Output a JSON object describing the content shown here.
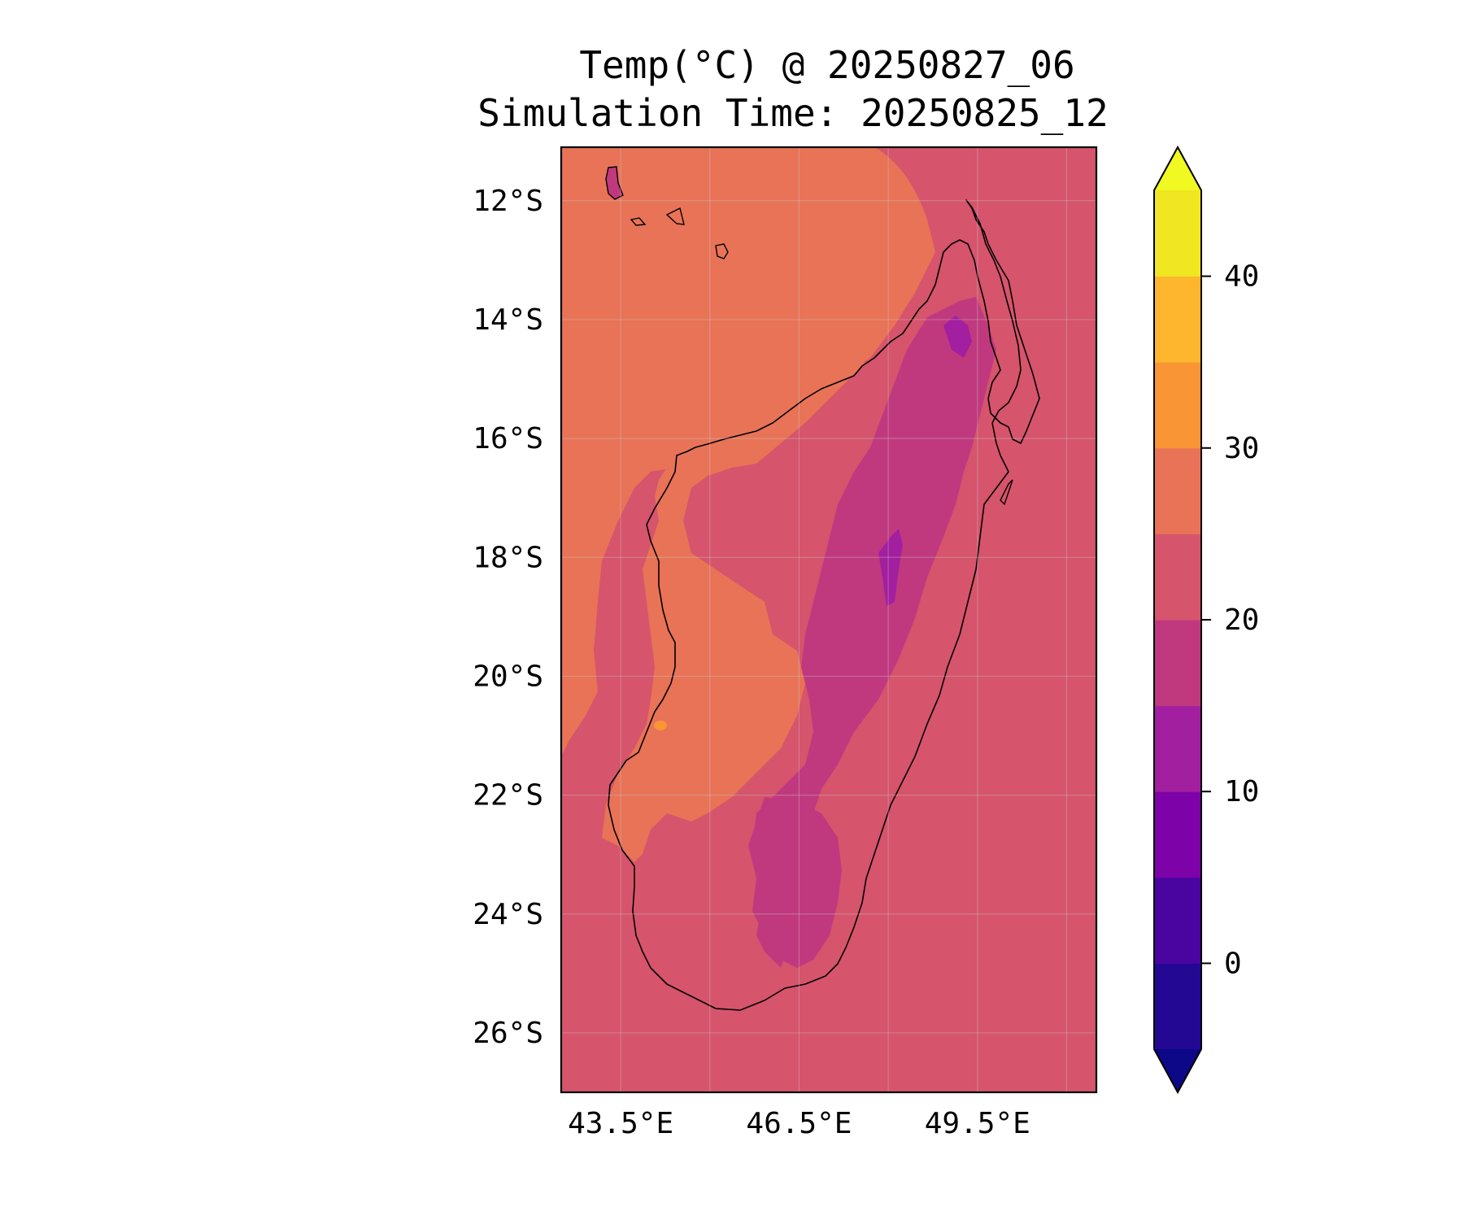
{
  "title": {
    "line1": "Temp(°C) @ 20250827_06",
    "line2": "Simulation Time: 20250825_12"
  },
  "map": {
    "lon_range": [
      42.5,
      51.5
    ],
    "lat_range": [
      -27,
      -11.1
    ],
    "lat_ticks": [
      "12°S",
      "14°S",
      "16°S",
      "18°S",
      "20°S",
      "22°S",
      "24°S",
      "26°S"
    ],
    "lon_ticks": [
      "43.5°E",
      "46.5°E",
      "49.5°E"
    ],
    "gridlines": true,
    "field_colors": {
      "ocean_west": "#e87357",
      "ocean_east": "#d6546c",
      "coast_warm": "#e87357",
      "highland": "#c0397f",
      "high_peak": "#a21fa0",
      "hot_spot": "#f99535"
    }
  },
  "colorbar": {
    "ticks": [
      "40",
      "30",
      "20",
      "10",
      "0"
    ],
    "tick_values": [
      40,
      30,
      20,
      10,
      0
    ],
    "levels": [
      -5,
      0,
      5,
      10,
      15,
      20,
      25,
      30,
      35,
      40,
      45
    ],
    "colors": [
      "#230894",
      "#4a05a1",
      "#7d02a8",
      "#a21fa0",
      "#c0397f",
      "#d6546c",
      "#e87357",
      "#f99535",
      "#fdb62d",
      "#f0e622"
    ],
    "under_color": "#0d0887",
    "over_color": "#f0f921",
    "extend": "both"
  }
}
